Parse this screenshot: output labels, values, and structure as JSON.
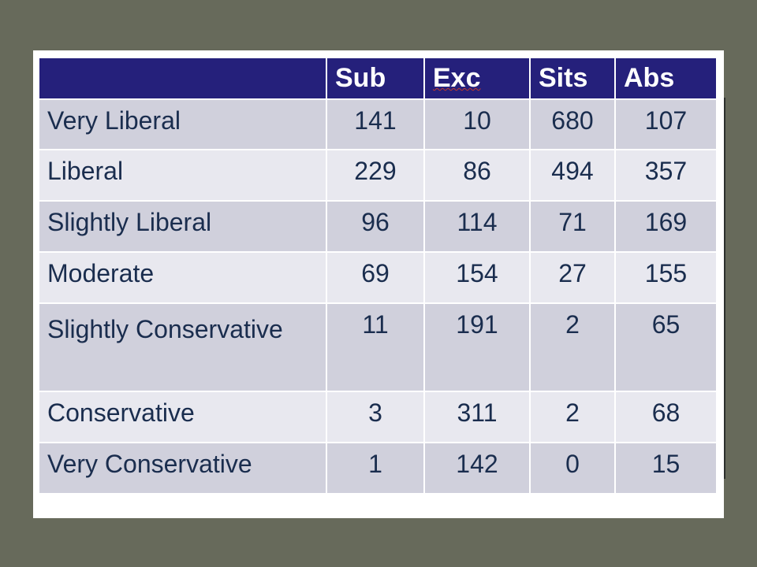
{
  "table": {
    "headers": [
      "",
      "Sub",
      "Exc",
      "Sits",
      "Abs"
    ],
    "rows": [
      {
        "label": "Very Liberal",
        "values": [
          "141",
          "10",
          "680",
          "107"
        ]
      },
      {
        "label": "Liberal",
        "values": [
          "229",
          "86",
          "494",
          "357"
        ]
      },
      {
        "label": "Slightly Liberal",
        "values": [
          "96",
          "114",
          "71",
          "169"
        ]
      },
      {
        "label": "Moderate",
        "values": [
          "69",
          "154",
          "27",
          "155"
        ]
      },
      {
        "label": "Slightly Conservative",
        "values": [
          "11",
          "191",
          "2",
          "65"
        ]
      },
      {
        "label": "Conservative",
        "values": [
          "3",
          "311",
          "2",
          "68"
        ]
      },
      {
        "label": "Very Conservative",
        "values": [
          "1",
          "142",
          "0",
          "15"
        ]
      }
    ]
  },
  "colors": {
    "header_bg": "#25207b",
    "row_dark": "#d0d0dc",
    "row_light": "#e8e8ef",
    "text": "#1a2d4e",
    "slide_bg": "#676a5b"
  }
}
